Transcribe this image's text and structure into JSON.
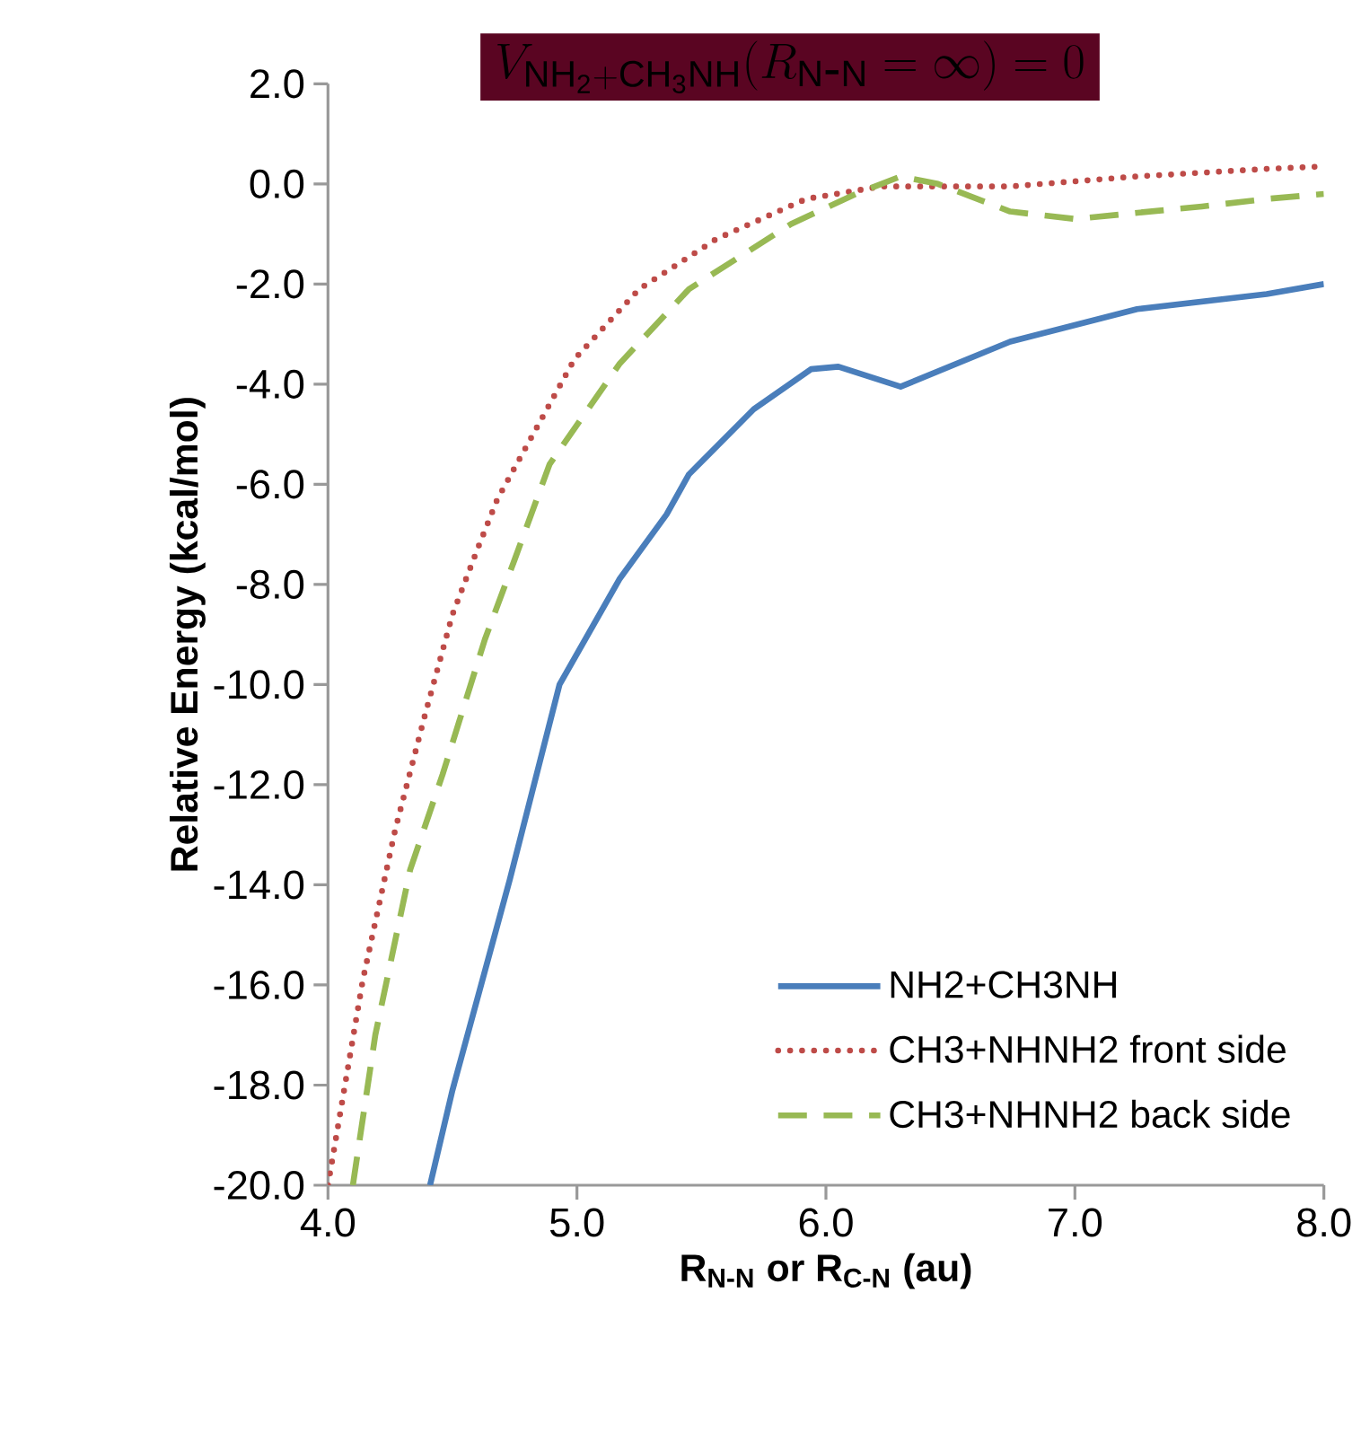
{
  "chart_data": {
    "type": "line",
    "title": "V_{\\mathrm{NH_2+CH_3NH}}(R_{\\mathrm{N\\mbox{-}N}}=\\infty)=0",
    "xlabel": "R$_{N-N}$  or R$_{C-N}$ (au)",
    "ylabel": "Relative Energy (kcal/mol)",
    "xlim": [
      4.0,
      8.0
    ],
    "ylim": [
      -20.0,
      2.0
    ],
    "xticks": [
      {
        "value": 4.0,
        "label": "4.0"
      },
      {
        "value": 5.0,
        "label": "5.0"
      },
      {
        "value": 6.0,
        "label": "6.0"
      },
      {
        "value": 7.0,
        "label": "7.0"
      },
      {
        "value": 8.0,
        "label": "8.0"
      }
    ],
    "yticks": [
      {
        "value": -20,
        "label": "-20.0"
      },
      {
        "value": -18,
        "label": "-18.0"
      },
      {
        "value": -16,
        "label": "-16.0"
      },
      {
        "value": -14,
        "label": "-14.0"
      },
      {
        "value": -12,
        "label": "-12.0"
      },
      {
        "value": -10,
        "label": "-10.0"
      },
      {
        "value": -8,
        "label": "-8.0"
      },
      {
        "value": -6,
        "label": "-6.0"
      },
      {
        "value": -4,
        "label": "-4.0"
      },
      {
        "value": -2,
        "label": "-2.0"
      },
      {
        "value": 0,
        "label": "0.0"
      },
      {
        "value": 2,
        "label": "2.0"
      }
    ],
    "legend": "bottom right",
    "grid": false,
    "marker": "none",
    "series": [
      {
        "name": "NH2+CH3NH",
        "color": "#4a7ebb",
        "line_style": "solid",
        "x": [
          4.41,
          4.5,
          4.73,
          4.93,
          5.17,
          5.36,
          5.45,
          5.71,
          5.94,
          6.05,
          6.3,
          6.74,
          7.25,
          7.77,
          8.0
        ],
        "values": [
          -20.0,
          -18.1,
          -13.9,
          -10.0,
          -7.9,
          -6.6,
          -5.8,
          -4.5,
          -3.7,
          -3.65,
          -4.05,
          -3.15,
          -2.5,
          -2.2,
          -2.0
        ]
      },
      {
        "name": "CH3+NHNH2 front side",
        "color": "#be4b48",
        "line_style": "dotted",
        "x": [
          4.0,
          4.14,
          4.27,
          4.39,
          4.5,
          4.6,
          4.68,
          4.99,
          5.25,
          5.56,
          5.92,
          6.22,
          6.74,
          7.25,
          7.77,
          8.0
        ],
        "values": [
          -20.0,
          -15.9,
          -12.9,
          -10.6,
          -8.6,
          -7.3,
          -6.3,
          -3.5,
          -2.1,
          -1.1,
          -0.3,
          -0.05,
          -0.05,
          0.15,
          0.3,
          0.35
        ]
      },
      {
        "name": "CH3+NHNH2 back side",
        "color": "#98b954",
        "line_style": "dashed",
        "x": [
          4.1,
          4.19,
          4.33,
          4.46,
          4.63,
          4.75,
          4.89,
          5.17,
          5.45,
          5.86,
          6.12,
          6.3,
          6.45,
          6.74,
          7.0,
          7.51,
          7.77,
          8.0
        ],
        "values": [
          -20.0,
          -17.0,
          -13.7,
          -11.8,
          -9.1,
          -7.5,
          -5.6,
          -3.6,
          -2.1,
          -0.8,
          -0.2,
          0.15,
          0.0,
          -0.55,
          -0.7,
          -0.45,
          -0.3,
          -0.2
        ]
      }
    ]
  }
}
